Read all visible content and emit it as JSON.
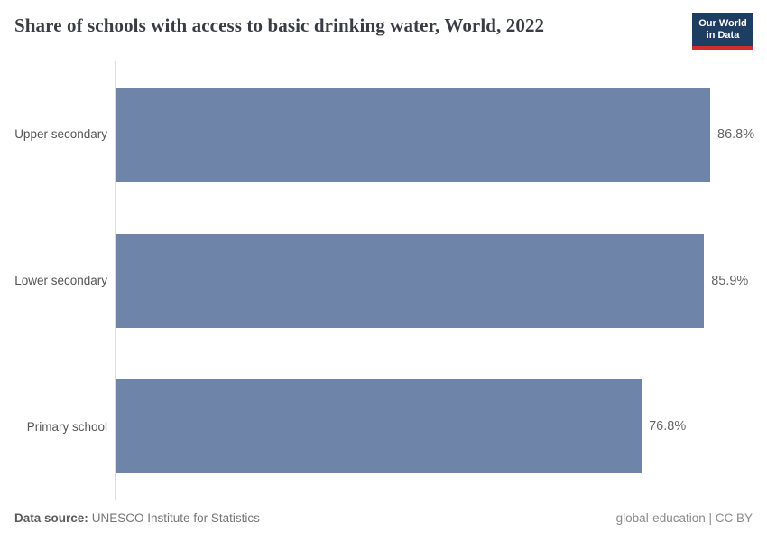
{
  "header": {
    "title": "Share of schools with access to basic drinking water, World, 2022",
    "logo": {
      "line1": "Our World",
      "line2": "in Data"
    }
  },
  "chart_data": {
    "type": "bar",
    "orientation": "horizontal",
    "title": "Share of schools with access to basic drinking water, World, 2022",
    "categories": [
      "Upper secondary",
      "Lower secondary",
      "Primary school"
    ],
    "values": [
      86.8,
      85.9,
      76.8
    ],
    "value_labels": [
      "86.8%",
      "85.9%",
      "76.8%"
    ],
    "xlabel": "",
    "ylabel": "",
    "xlim": [
      0,
      86.8
    ],
    "grid": false,
    "legend": false,
    "bar_color": "#6e84a8"
  },
  "footer": {
    "source_label": "Data source:",
    "source_text": "UNESCO Institute for Statistics",
    "license_text": "global-education | CC BY"
  },
  "colors": {
    "bar": "#6e84a8",
    "logo_bg": "#1d3d63",
    "logo_stripe": "#d42b2f",
    "title_text": "#383d43",
    "label_text": "#555555",
    "value_text": "#666666",
    "axis_line": "#dddddd"
  }
}
